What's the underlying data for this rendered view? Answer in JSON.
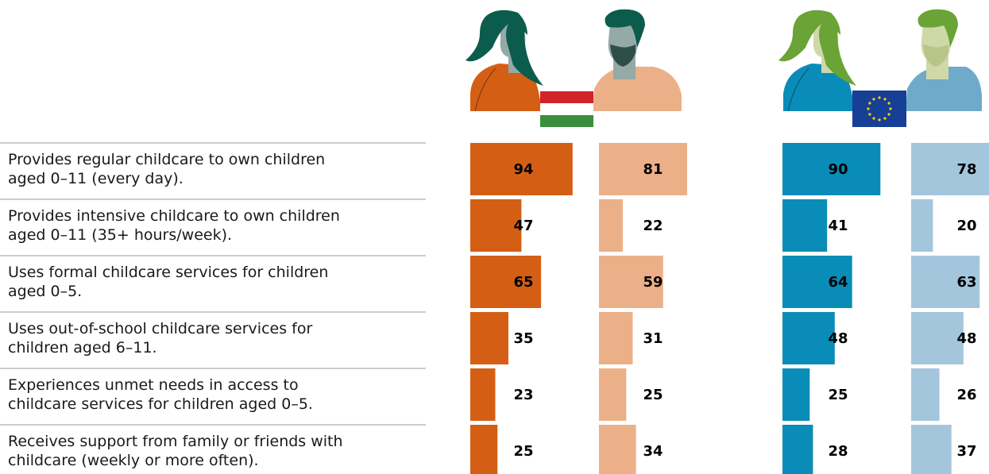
{
  "chart_data": {
    "type": "bar",
    "categories": [
      [
        "Provides regular childcare to own children",
        "aged 0–11 (every day)."
      ],
      [
        "Provides intensive childcare to own children",
        "aged 0–11 (35+ hours/week)."
      ],
      [
        "Uses formal childcare services for children",
        "aged 0–5."
      ],
      [
        "Uses out-of-school childcare services for",
        "children aged 6–11."
      ],
      [
        "Experiences unmet needs in access to",
        "childcare services for children aged 0–5."
      ],
      [
        "Receives support from family or friends with",
        "childcare (weekly or more often)."
      ]
    ],
    "series": [
      {
        "group": "Hungary",
        "figure": "woman",
        "color": "#d45f14",
        "values": [
          94,
          47,
          65,
          35,
          23,
          25
        ]
      },
      {
        "group": "Hungary",
        "figure": "man",
        "color": "#ebb088",
        "values": [
          81,
          22,
          59,
          31,
          25,
          34
        ]
      },
      {
        "group": "EU",
        "figure": "woman",
        "color": "#0a8cb8",
        "values": [
          90,
          41,
          64,
          48,
          25,
          28
        ]
      },
      {
        "group": "EU",
        "figure": "man",
        "color": "#a3c6dc",
        "values": [
          78,
          20,
          63,
          48,
          26,
          37
        ]
      }
    ],
    "ylim": [
      0,
      100
    ],
    "grid": false,
    "legend": "pictorial figures with Hungarian flag and EU flag above the bar columns"
  },
  "icons": {
    "hu_woman": "woman-figure-icon",
    "hu_man": "man-figure-icon",
    "hu_flag": "hungary-flag-icon",
    "eu_woman": "woman-figure-icon",
    "eu_man": "man-figure-icon",
    "eu_flag": "eu-flag-icon"
  },
  "colors": {
    "hu_hair": "#0c5c4e",
    "hu_woman_shirt": "#d45f14",
    "hu_man_shirt": "#ebb088",
    "skin_hu": "#94aaa6",
    "eu_hair": "#6aa336",
    "eu_woman_shirt": "#0a8cb8",
    "eu_man_shirt": "#6faacb",
    "skin_eu": "#cfd8a8",
    "flag_red": "#d2232a",
    "flag_green": "#3b8e3c",
    "eu_blue": "#173f95",
    "eu_star": "#ffd200"
  }
}
